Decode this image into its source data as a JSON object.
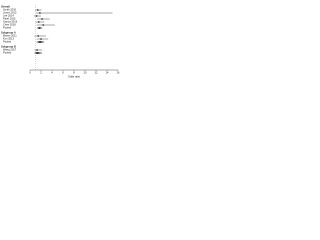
{
  "chart_data": {
    "type": "forest",
    "xlabel": "Odds ratio",
    "xlim": [
      0,
      16
    ],
    "xticks": [
      0,
      2,
      4,
      6,
      8,
      10,
      12,
      14,
      16
    ],
    "reference": 1,
    "color": "#222222",
    "groups": [
      {
        "name": "Overall",
        "rows": [
          {
            "label": "Smith 2010",
            "value": 1.4,
            "lower": 0.9,
            "upper": 2.1
          },
          {
            "label": "Jones 2012",
            "value": 1.8,
            "lower": 1.1,
            "upper": 15
          },
          {
            "label": "Lee 2014",
            "value": 1.2,
            "lower": 0.7,
            "upper": 2.0
          },
          {
            "label": "Patel 2015",
            "value": 2.2,
            "lower": 1.3,
            "upper": 3.6
          },
          {
            "label": "Garcia 2016",
            "value": 1.6,
            "lower": 1.0,
            "upper": 2.6
          },
          {
            "label": "Chen 2018",
            "value": 2.4,
            "lower": 1.2,
            "upper": 4.5
          },
          {
            "label": "Pooled",
            "value": 1.7,
            "lower": 1.3,
            "upper": 2.2
          }
        ]
      },
      {
        "name": "Subgroup A",
        "rows": [
          {
            "label": "Brown 2011",
            "value": 1.5,
            "lower": 0.8,
            "upper": 2.9
          },
          {
            "label": "Kim 2013",
            "value": 2.0,
            "lower": 1.2,
            "upper": 3.3
          },
          {
            "label": "Pooled",
            "value": 1.8,
            "lower": 1.2,
            "upper": 2.6
          }
        ]
      },
      {
        "name": "Subgroup B",
        "rows": [
          {
            "label": "Wang 2017",
            "value": 1.3,
            "lower": 0.8,
            "upper": 2.2
          },
          {
            "label": "Pooled",
            "value": 1.3,
            "lower": 0.8,
            "upper": 2.2
          }
        ]
      }
    ]
  }
}
